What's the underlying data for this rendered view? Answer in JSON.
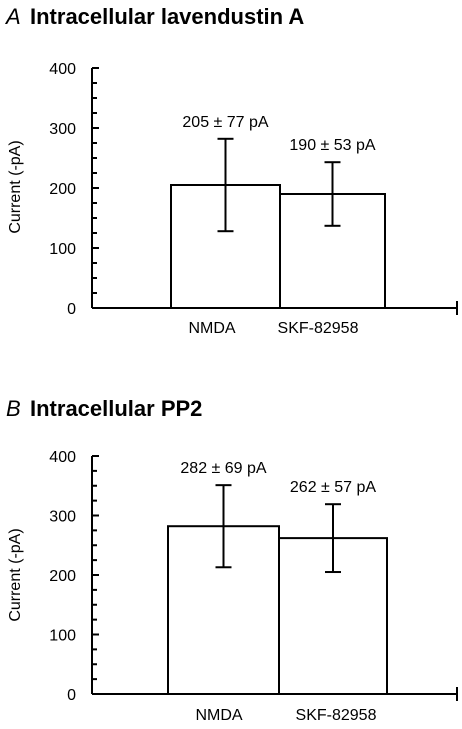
{
  "chart_data": [
    {
      "type": "bar",
      "panel_letter": "A",
      "title": "Intracellular lavendustin A",
      "ylabel": "Current (-pA)",
      "ylim": [
        0,
        400
      ],
      "yticks": [
        0,
        100,
        200,
        300,
        400
      ],
      "yticks_labels": [
        "0",
        "100",
        "200",
        "300",
        "400"
      ],
      "categories": [
        "NMDA",
        "SKF-82958"
      ],
      "values": [
        205,
        190
      ],
      "errors": [
        77,
        53
      ],
      "data_labels": [
        "205 ± 77 pA",
        "190 ± 53 pA"
      ],
      "grid": false,
      "legend": "none"
    },
    {
      "type": "bar",
      "panel_letter": "B",
      "title": "Intracellular PP2",
      "ylabel": "Current (-pA)",
      "ylim": [
        0,
        400
      ],
      "yticks": [
        0,
        100,
        200,
        300,
        400
      ],
      "yticks_labels": [
        "0",
        "100",
        "200",
        "300",
        "400"
      ],
      "categories": [
        "NMDA",
        "SKF-82958"
      ],
      "values": [
        282,
        262
      ],
      "errors": [
        69,
        57
      ],
      "data_labels": [
        "282 ± 69 pA",
        "262 ± 57 pA"
      ],
      "grid": false,
      "legend": "none"
    }
  ]
}
